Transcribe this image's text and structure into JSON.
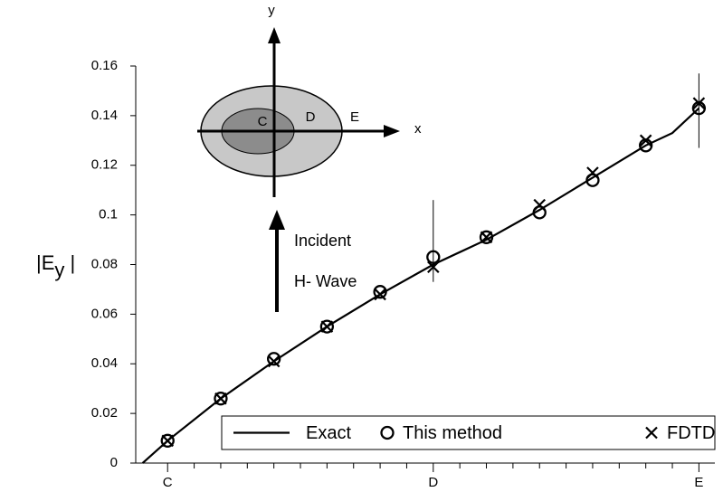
{
  "chart_data": {
    "type": "line",
    "ylabel": [
      "|E",
      "y",
      " |"
    ],
    "ylim": [
      0,
      0.16
    ],
    "yticks": [
      0,
      0.02,
      0.04,
      0.06,
      0.08,
      0.1,
      0.12,
      0.14,
      0.16
    ],
    "xlim": [
      -0.06,
      1.03
    ],
    "xticks": [
      {
        "value": 0,
        "label": "C"
      },
      {
        "value": 0.5,
        "label": "D"
      },
      {
        "value": 1,
        "label": "E"
      }
    ],
    "xminorticks": [
      0.05,
      0.1,
      0.15,
      0.2,
      0.25,
      0.3,
      0.35,
      0.4,
      0.45,
      0.55,
      0.6,
      0.65,
      0.7,
      0.75,
      0.8,
      0.85,
      0.9,
      0.95
    ],
    "series": [
      {
        "name": "Exact",
        "color": "#000000",
        "marker": "none",
        "x": [
          -0.047,
          0,
          0.1,
          0.2,
          0.3,
          0.4,
          0.5,
          0.6,
          0.7,
          0.8,
          0.9,
          0.95,
          1.0
        ],
        "values": [
          0,
          0.009,
          0.026,
          0.041,
          0.055,
          0.068,
          0.08,
          0.09,
          0.102,
          0.115,
          0.128,
          0.133,
          0.143
        ]
      },
      {
        "name": "This method",
        "color": "#000000",
        "marker": "circle",
        "x": [
          0,
          0.1,
          0.2,
          0.3,
          0.4,
          0.5,
          0.6,
          0.7,
          0.8,
          0.9,
          1.0
        ],
        "values": [
          0.009,
          0.026,
          0.042,
          0.055,
          0.069,
          0.083,
          0.091,
          0.101,
          0.114,
          0.128,
          0.143
        ]
      },
      {
        "name": "FDTD",
        "color": "#000000",
        "marker": "x",
        "x": [
          0,
          0.1,
          0.2,
          0.3,
          0.4,
          0.5,
          0.6,
          0.7,
          0.8,
          0.9,
          1.0
        ],
        "values": [
          0.009,
          0.026,
          0.041,
          0.055,
          0.068,
          0.079,
          0.091,
          0.104,
          0.117,
          0.13,
          0.145
        ]
      }
    ],
    "error_bars": [
      {
        "x": 0.5,
        "low": 0.073,
        "high": 0.106
      },
      {
        "x": 1.0,
        "low": 0.127,
        "high": 0.157
      }
    ],
    "legend": "lower right",
    "inset_labels": {
      "y_axis": "y",
      "x_axis": "x",
      "inner": "C",
      "middle": "D",
      "outer": "E"
    },
    "annotations": [
      "Incident",
      "H- Wave"
    ]
  }
}
